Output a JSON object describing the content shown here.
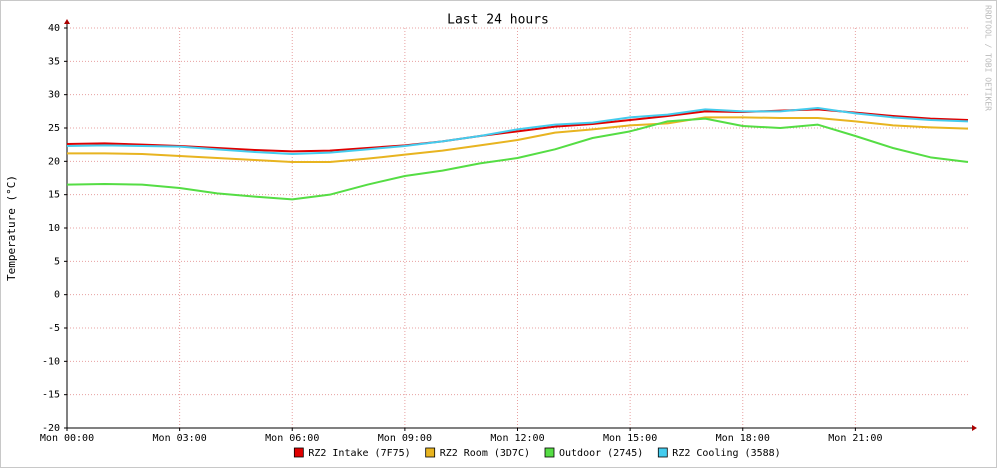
{
  "chart_data": {
    "type": "line",
    "title": "Last 24 hours",
    "y_label": "Temperature (°C)",
    "watermark": "RRDTOOL / TOBI OETIKER",
    "x": [
      0,
      1,
      2,
      3,
      4,
      5,
      6,
      7,
      8,
      9,
      10,
      11,
      12,
      13,
      14,
      15,
      16,
      17,
      18,
      19,
      20,
      21,
      22,
      23,
      24
    ],
    "series": [
      {
        "name": "RZ2 Intake (7F75)",
        "color": "#e00000",
        "values": [
          22.6,
          22.7,
          22.5,
          22.3,
          22.0,
          21.7,
          21.5,
          21.6,
          22.0,
          22.4,
          23.0,
          23.8,
          24.5,
          25.2,
          25.6,
          26.2,
          26.8,
          27.5,
          27.4,
          27.6,
          27.8,
          27.3,
          26.8,
          26.4,
          26.2
        ]
      },
      {
        "name": "RZ2 Room (3D7C)",
        "color": "#e8b420",
        "values": [
          21.2,
          21.2,
          21.1,
          20.8,
          20.5,
          20.2,
          19.9,
          19.9,
          20.4,
          21.0,
          21.6,
          22.4,
          23.2,
          24.3,
          24.8,
          25.4,
          25.7,
          26.6,
          26.6,
          26.5,
          26.5,
          26.0,
          25.4,
          25.1,
          24.9
        ]
      },
      {
        "name": "Outdoor (2745)",
        "color": "#55dd44",
        "values": [
          16.5,
          16.6,
          16.5,
          16.0,
          15.2,
          14.7,
          14.3,
          15.0,
          16.5,
          17.8,
          18.6,
          19.7,
          20.5,
          21.8,
          23.5,
          24.5,
          26.0,
          26.4,
          25.3,
          25.0,
          25.5,
          23.8,
          22.0,
          20.6,
          19.9
        ]
      },
      {
        "name": "RZ2 Cooling (3588)",
        "color": "#44ccee",
        "values": [
          22.3,
          22.4,
          22.3,
          22.2,
          21.8,
          21.4,
          21.1,
          21.3,
          21.8,
          22.3,
          23.0,
          23.8,
          24.8,
          25.5,
          25.8,
          26.6,
          27.0,
          27.8,
          27.5,
          27.5,
          28.0,
          27.2,
          26.6,
          26.2,
          26.0
        ]
      }
    ],
    "xlim": [
      0,
      24
    ],
    "xticks": [
      {
        "value": 0,
        "label": "Mon 00:00"
      },
      {
        "value": 3,
        "label": "Mon 03:00"
      },
      {
        "value": 6,
        "label": "Mon 06:00"
      },
      {
        "value": 9,
        "label": "Mon 09:00"
      },
      {
        "value": 12,
        "label": "Mon 12:00"
      },
      {
        "value": 15,
        "label": "Mon 15:00"
      },
      {
        "value": 18,
        "label": "Mon 18:00"
      },
      {
        "value": 21,
        "label": "Mon 21:00"
      }
    ],
    "ylim": [
      -20,
      40
    ],
    "yticks": [
      -20,
      -15,
      -10,
      -5,
      0,
      5,
      10,
      15,
      20,
      25,
      30,
      35,
      40
    ],
    "grid": true
  }
}
